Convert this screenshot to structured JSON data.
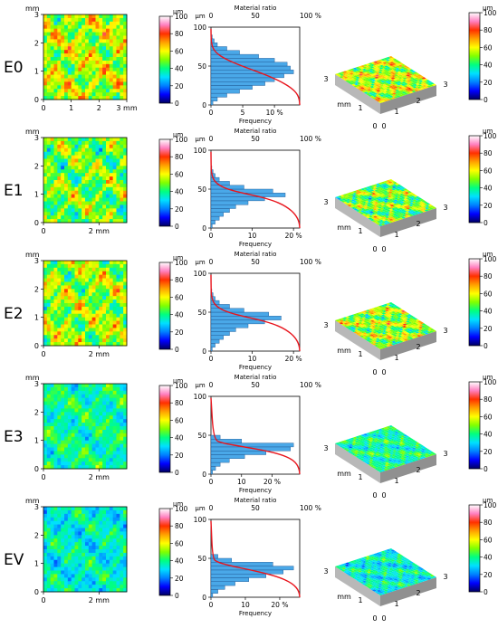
{
  "units": {
    "height": "µm",
    "length": "mm"
  },
  "map_ticks": {
    "y": [
      "0",
      "1",
      "2",
      "3"
    ],
    "x_full": [
      "0",
      "1",
      "2",
      "3 mm"
    ],
    "x_short": [
      "0",
      "2 mm"
    ]
  },
  "colorbar_ticks": [
    "0",
    "20",
    "40",
    "60",
    "80",
    "100"
  ],
  "histogram": {
    "top_label": "Material ratio",
    "top_ticks": [
      "0",
      "50",
      "100 %"
    ],
    "y_unit": "µm",
    "y_ticks": [
      "0",
      "50",
      "100"
    ],
    "x_label": "Frequency"
  },
  "view3d_ticks": {
    "left": [
      "3",
      "mm",
      "1",
      "0"
    ],
    "right": [
      "0",
      "1",
      "2",
      "3"
    ]
  },
  "chart_data": [
    {
      "type": "heatmap+histogram",
      "sample": "E0",
      "map_mean_level": 55,
      "histogram_bins_um": [
        5,
        10,
        15,
        20,
        25,
        30,
        35,
        40,
        45,
        50,
        55,
        60,
        65,
        70,
        75,
        80,
        85,
        90
      ],
      "histogram_frequency_pct": [
        0.3,
        1,
        2.5,
        4.5,
        6.5,
        8.5,
        10,
        11.5,
        13,
        12.5,
        12,
        10,
        7.5,
        4.5,
        2.5,
        1,
        0.5,
        0.2
      ],
      "frequency_ticks": [
        "0",
        "5",
        "10 %"
      ],
      "frequency_max": 13
    },
    {
      "type": "heatmap+histogram",
      "sample": "E1",
      "map_mean_level": 48,
      "histogram_bins_um": [
        5,
        10,
        15,
        20,
        25,
        30,
        35,
        40,
        45,
        50,
        55,
        60,
        65,
        70,
        75,
        80
      ],
      "histogram_frequency_pct": [
        0.3,
        1,
        2,
        3,
        4.5,
        6,
        9,
        13,
        18,
        15,
        8,
        4.5,
        2,
        1,
        0.5,
        0.2
      ],
      "frequency_ticks": [
        "0",
        "10",
        "20 %"
      ],
      "frequency_max": 20
    },
    {
      "type": "heatmap+histogram",
      "sample": "E2",
      "map_mean_level": 52,
      "histogram_bins_um": [
        5,
        10,
        15,
        20,
        25,
        30,
        35,
        40,
        45,
        50,
        55,
        60,
        65,
        70,
        75,
        80
      ],
      "histogram_frequency_pct": [
        0.3,
        1,
        2,
        3,
        4.5,
        6,
        9,
        13,
        17,
        14,
        8,
        4.5,
        2,
        1,
        0.5,
        0.2
      ],
      "frequency_ticks": [
        "0",
        "10",
        "20 %"
      ],
      "frequency_max": 20
    },
    {
      "type": "heatmap+histogram",
      "sample": "E3",
      "map_mean_level": 38,
      "histogram_bins_um": [
        5,
        10,
        15,
        20,
        25,
        30,
        35,
        40,
        45,
        50
      ],
      "histogram_frequency_pct": [
        0.5,
        1.5,
        3,
        6,
        11,
        18,
        26,
        27,
        10,
        3
      ],
      "frequency_ticks": [
        "0",
        "10",
        "20 %"
      ],
      "frequency_max": 27
    },
    {
      "type": "heatmap+histogram",
      "sample": "EV",
      "map_mean_level": 34,
      "histogram_bins_um": [
        5,
        10,
        15,
        20,
        25,
        30,
        35,
        40,
        45,
        50,
        55
      ],
      "histogram_frequency_pct": [
        0.5,
        2,
        4,
        7,
        11,
        16,
        21,
        24,
        18,
        6,
        2
      ],
      "frequency_ticks": [
        "0",
        "10",
        "20 %"
      ],
      "frequency_max": 24
    }
  ],
  "colors": {
    "scale": [
      "#000060",
      "#0000ff",
      "#0080ff",
      "#00e0ff",
      "#00ff80",
      "#80ff00",
      "#ffff00",
      "#ffa000",
      "#ff3000",
      "#ff80c0",
      "#ffffff"
    ],
    "hist_bar": "#4aa8e8",
    "hist_curve": "#e8141c",
    "frame_grey": "#a0a0a0"
  }
}
